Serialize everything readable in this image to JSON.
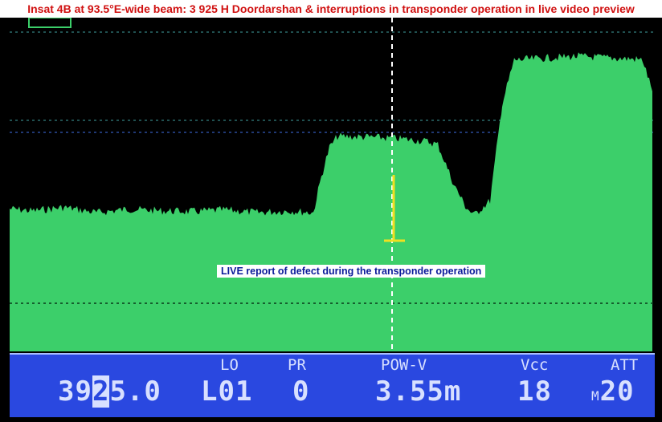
{
  "title": "Insat 4B at 93.5°E-wide beam: 3 925 H Doordarshan & interruptions in transponder operation in live video preview",
  "marker_label": "LIVE report of defect during the transponder operation",
  "status": {
    "frequency_pre": "39",
    "frequency_cursor": "2",
    "frequency_post": "5.0",
    "lo_label": "LO",
    "lo_value": "L01",
    "pr_label": "PR",
    "pr_value": "0",
    "pow_label": "POW-V",
    "pow_value": "3.55m",
    "vcc_label": "Vcc",
    "vcc_value": "18",
    "att_label": "ATT",
    "att_prefix": "M",
    "att_value": "20"
  },
  "colors": {
    "trace": "#3ccf6a",
    "status_bar": "#2a48e0",
    "marker": "#f0e020",
    "title_text": "#d01010"
  },
  "chart_data": {
    "type": "area",
    "level_pct": [
      40.6,
      40,
      41,
      39.5,
      40.5,
      40,
      39.8,
      40.3,
      39.5,
      40,
      39.5,
      49.8,
      58,
      61.2,
      61,
      60.5,
      59.8,
      58.9,
      47.5,
      41,
      38.8,
      42.9,
      70.3,
      82.9,
      83.5,
      84,
      83.5,
      83.2,
      82.9,
      74
    ]
  }
}
